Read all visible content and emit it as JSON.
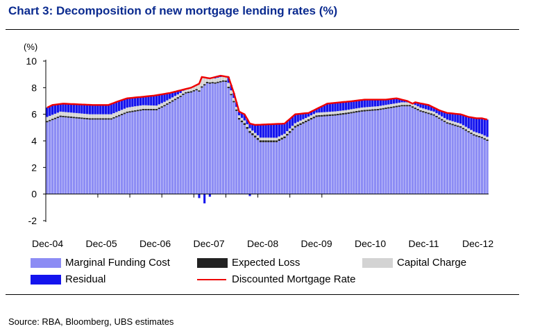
{
  "header": {
    "title": "Chart 3:  Decomposition of new mortgage lending rates (%)"
  },
  "footer": {
    "source": "Source: RBA, Bloomberg, UBS estimates"
  },
  "colors": {
    "marginal": "#8c8cf4",
    "expected": "#222222",
    "capital": "#d3d3d3",
    "residual": "#1414ee",
    "line": "#ee0000"
  },
  "chart_data": {
    "type": "bar",
    "stacked": true,
    "title": "Decomposition of new mortgage lending rates (%)",
    "ylabel": "(%)",
    "ylim": [
      -2,
      10
    ],
    "yticks": [
      "-2",
      "0",
      "2",
      "4",
      "6",
      "8",
      "10"
    ],
    "xtick_labels": [
      "Dec-04",
      "Dec-05",
      "Dec-06",
      "Dec-07",
      "Dec-08",
      "Dec-09",
      "Dec-10",
      "Dec-11",
      "Dec-12"
    ],
    "months_start": "Dec-04",
    "legend": [
      {
        "key": "marginal",
        "label": "Marginal Funding Cost",
        "kind": "bar"
      },
      {
        "key": "expected",
        "label": "Expected Loss",
        "kind": "bar"
      },
      {
        "key": "capital",
        "label": "Capital Charge",
        "kind": "bar"
      },
      {
        "key": "residual",
        "label": "Residual",
        "kind": "bar"
      },
      {
        "key": "line",
        "label": "Discounted Mortgage Rate",
        "kind": "line"
      }
    ],
    "line_series_name": "Discounted Mortgage Rate",
    "line_anchors": [
      [
        0,
        6.5
      ],
      [
        2,
        6.7
      ],
      [
        6,
        6.8
      ],
      [
        17,
        6.7
      ],
      [
        23,
        6.7
      ],
      [
        27,
        7.0
      ],
      [
        30,
        7.2
      ],
      [
        40,
        7.4
      ],
      [
        46,
        7.6
      ],
      [
        50,
        7.8
      ],
      [
        54,
        8.0
      ],
      [
        57,
        8.3
      ],
      [
        58,
        8.8
      ],
      [
        61,
        8.7
      ],
      [
        65,
        8.9
      ],
      [
        68,
        8.8
      ],
      [
        70,
        7.6
      ],
      [
        72,
        6.2
      ],
      [
        74,
        6.0
      ],
      [
        76,
        5.3
      ],
      [
        78,
        5.2
      ],
      [
        89,
        5.3
      ],
      [
        93,
        6.0
      ],
      [
        98,
        6.1
      ],
      [
        103,
        6.6
      ],
      [
        105,
        6.8
      ],
      [
        115,
        7.0
      ],
      [
        119,
        7.1
      ],
      [
        127,
        7.1
      ],
      [
        131,
        7.2
      ],
      [
        135,
        7.0
      ],
      [
        137,
        6.8
      ],
      [
        138,
        6.9
      ],
      [
        143,
        6.7
      ],
      [
        147,
        6.3
      ],
      [
        150,
        6.1
      ],
      [
        155,
        6.0
      ],
      [
        158,
        5.8
      ],
      [
        161,
        5.7
      ],
      [
        163,
        5.7
      ],
      [
        165,
        5.6
      ]
    ],
    "capital_anchors": [
      [
        0,
        0.3
      ],
      [
        33,
        0.3
      ],
      [
        50,
        0.2
      ],
      [
        56,
        0.3
      ],
      [
        58,
        0.7
      ],
      [
        60,
        0.3
      ],
      [
        68,
        0.3
      ],
      [
        71,
        0.2
      ],
      [
        165,
        0.2
      ]
    ],
    "expected_anchors": [
      [
        0,
        0.1
      ],
      [
        70,
        0.1
      ],
      [
        75,
        0.15
      ],
      [
        100,
        0.12
      ],
      [
        130,
        0.1
      ],
      [
        165,
        0.1
      ]
    ],
    "marginal_anchors": [
      [
        0,
        5.4
      ],
      [
        5,
        5.8
      ],
      [
        16,
        5.6
      ],
      [
        24,
        5.6
      ],
      [
        30,
        6.1
      ],
      [
        36,
        6.3
      ],
      [
        41,
        6.3
      ],
      [
        44,
        6.6
      ],
      [
        50,
        7.3
      ],
      [
        54,
        7.9
      ],
      [
        57,
        8.4
      ],
      [
        59,
        8.4
      ],
      [
        63,
        8.3
      ],
      [
        67,
        8.5
      ],
      [
        70,
        6.9
      ],
      [
        72,
        5.6
      ],
      [
        74,
        5.2
      ],
      [
        76,
        4.6
      ],
      [
        80,
        3.9
      ],
      [
        86,
        3.9
      ],
      [
        89,
        4.2
      ],
      [
        93,
        5.0
      ],
      [
        97,
        5.4
      ],
      [
        101,
        5.8
      ],
      [
        108,
        5.9
      ],
      [
        112,
        6.0
      ],
      [
        118,
        6.2
      ],
      [
        124,
        6.3
      ],
      [
        130,
        6.5
      ],
      [
        133,
        6.6
      ],
      [
        136,
        6.6
      ],
      [
        140,
        6.2
      ],
      [
        145,
        5.9
      ],
      [
        150,
        5.3
      ],
      [
        155,
        5.0
      ],
      [
        160,
        4.4
      ],
      [
        163,
        4.2
      ],
      [
        165,
        4.0
      ]
    ],
    "negative_residual_anchors": [
      [
        57,
        -0.3
      ],
      [
        59,
        -0.7
      ],
      [
        61,
        -0.2
      ],
      [
        76,
        -0.15
      ]
    ]
  }
}
